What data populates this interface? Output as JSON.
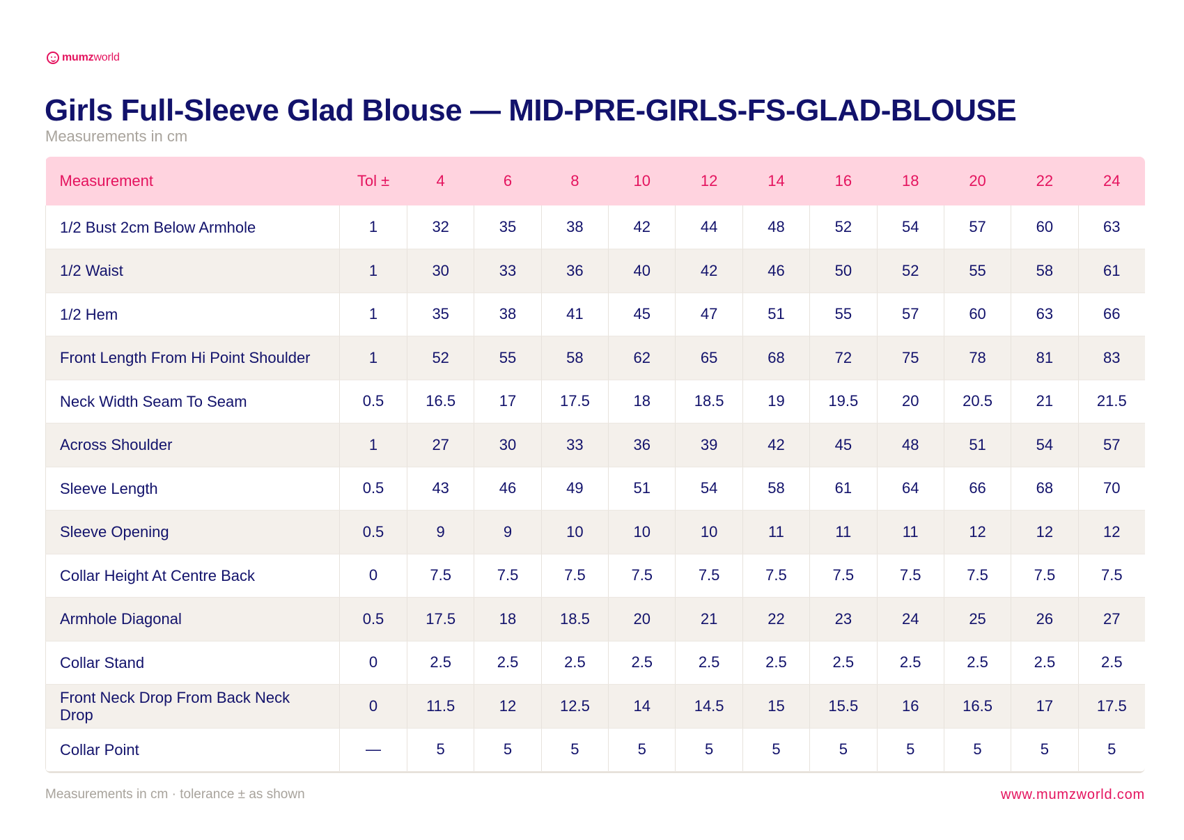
{
  "brand": {
    "name_bold": "mumz",
    "name_light": "world",
    "color": "#e4135e"
  },
  "header": {
    "title": "Girls Full-Sleeve Glad Blouse — MID-PRE-GIRLS-FS-GLAD-BLOUSE",
    "subtitle": "Measurements in cm"
  },
  "table": {
    "headers": [
      "Measurement",
      "Tol ±",
      "4",
      "6",
      "8",
      "10",
      "12",
      "14",
      "16",
      "18",
      "20",
      "22",
      "24"
    ],
    "rows": [
      [
        "1/2 Bust 2cm Below Armhole",
        "1",
        "32",
        "35",
        "38",
        "42",
        "44",
        "48",
        "52",
        "54",
        "57",
        "60",
        "63"
      ],
      [
        "1/2 Waist",
        "1",
        "30",
        "33",
        "36",
        "40",
        "42",
        "46",
        "50",
        "52",
        "55",
        "58",
        "61"
      ],
      [
        "1/2 Hem",
        "1",
        "35",
        "38",
        "41",
        "45",
        "47",
        "51",
        "55",
        "57",
        "60",
        "63",
        "66"
      ],
      [
        "Front Length From Hi Point Shoulder",
        "1",
        "52",
        "55",
        "58",
        "62",
        "65",
        "68",
        "72",
        "75",
        "78",
        "81",
        "83"
      ],
      [
        "Neck Width Seam To Seam",
        "0.5",
        "16.5",
        "17",
        "17.5",
        "18",
        "18.5",
        "19",
        "19.5",
        "20",
        "20.5",
        "21",
        "21.5"
      ],
      [
        "Across Shoulder",
        "1",
        "27",
        "30",
        "33",
        "36",
        "39",
        "42",
        "45",
        "48",
        "51",
        "54",
        "57"
      ],
      [
        "Sleeve Length",
        "0.5",
        "43",
        "46",
        "49",
        "51",
        "54",
        "58",
        "61",
        "64",
        "66",
        "68",
        "70"
      ],
      [
        "Sleeve Opening",
        "0.5",
        "9",
        "9",
        "10",
        "10",
        "10",
        "11",
        "11",
        "11",
        "12",
        "12",
        "12"
      ],
      [
        "Collar Height At Centre Back",
        "0",
        "7.5",
        "7.5",
        "7.5",
        "7.5",
        "7.5",
        "7.5",
        "7.5",
        "7.5",
        "7.5",
        "7.5",
        "7.5"
      ],
      [
        "Armhole Diagonal",
        "0.5",
        "17.5",
        "18",
        "18.5",
        "20",
        "21",
        "22",
        "23",
        "24",
        "25",
        "26",
        "27"
      ],
      [
        "Collar Stand",
        "0",
        "2.5",
        "2.5",
        "2.5",
        "2.5",
        "2.5",
        "2.5",
        "2.5",
        "2.5",
        "2.5",
        "2.5",
        "2.5"
      ],
      [
        "Front Neck Drop From Back Neck Drop",
        "0",
        "11.5",
        "12",
        "12.5",
        "14",
        "14.5",
        "15",
        "15.5",
        "16",
        "16.5",
        "17",
        "17.5"
      ],
      [
        "Collar Point",
        "—",
        "5",
        "5",
        "5",
        "5",
        "5",
        "5",
        "5",
        "5",
        "5",
        "5",
        "5"
      ]
    ]
  },
  "footer": {
    "note": "Measurements in cm · tolerance ± as shown",
    "website": "www.mumzworld.com"
  }
}
